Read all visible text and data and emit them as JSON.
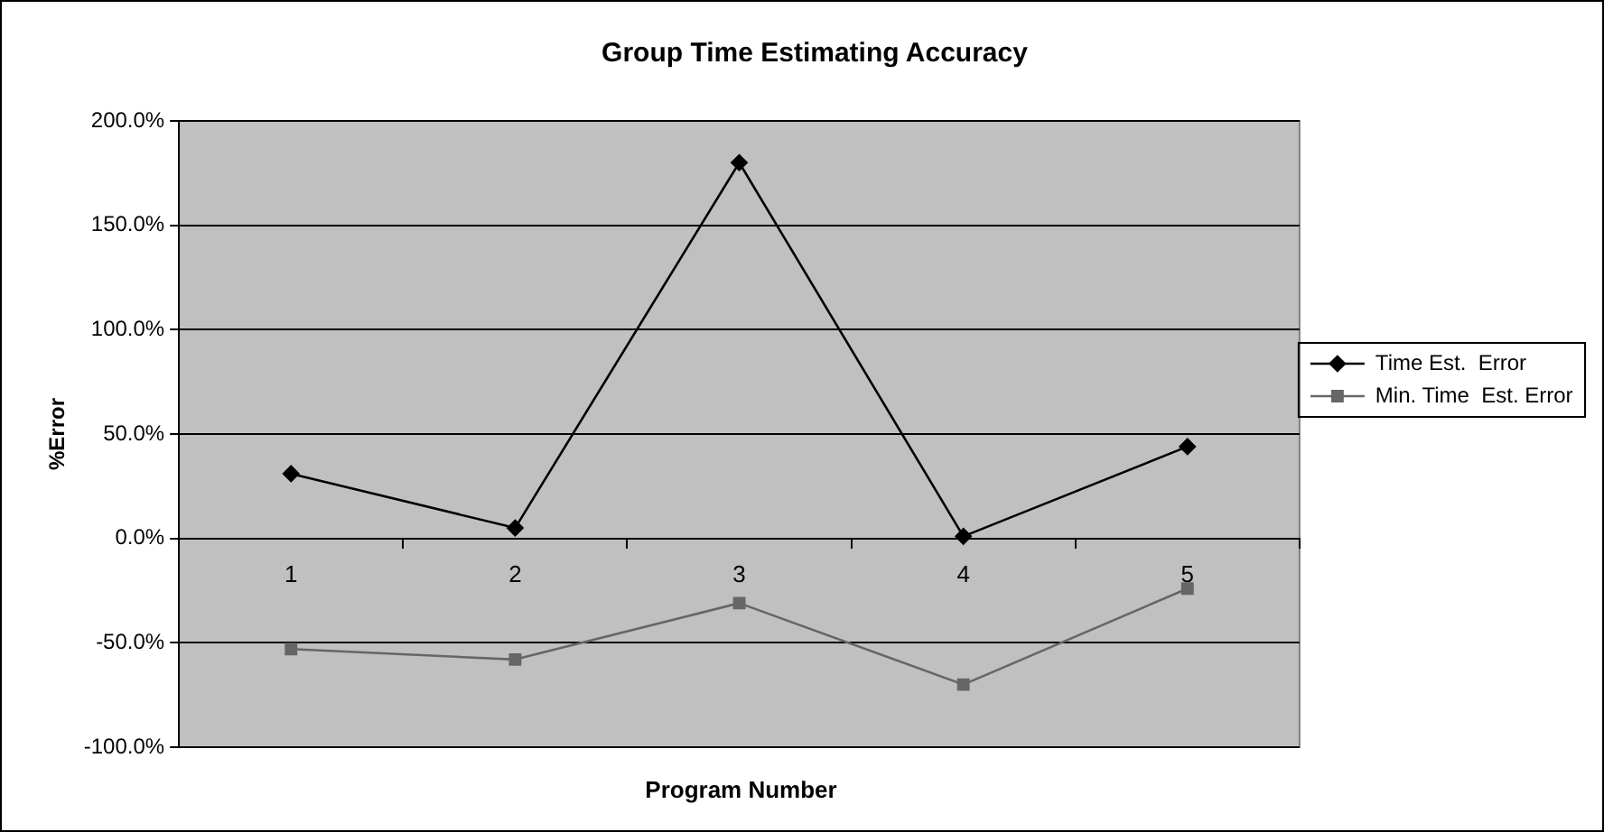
{
  "chart_data": {
    "type": "line",
    "title": "Group Time Estimating Accuracy",
    "xlabel": "Program Number",
    "ylabel": "%Error",
    "categories": [
      "1",
      "2",
      "3",
      "4",
      "5"
    ],
    "series": [
      {
        "name": "Time Est.  Error",
        "color": "#000000",
        "marker": "diamond",
        "values": [
          31,
          5,
          180,
          1,
          44
        ]
      },
      {
        "name": "Min. Time  Est. Error",
        "color": "#666666",
        "marker": "square",
        "values": [
          -53,
          -58,
          -31,
          -70,
          -24
        ]
      }
    ],
    "ylim": [
      -100,
      200
    ],
    "yticks": [
      {
        "value": -100,
        "label": "-100.0%"
      },
      {
        "value": -50,
        "label": "-50.0%"
      },
      {
        "value": 0,
        "label": "0.0%"
      },
      {
        "value": 50,
        "label": "50.0%"
      },
      {
        "value": 100,
        "label": "100.0%"
      },
      {
        "value": 150,
        "label": "150.0%"
      },
      {
        "value": 200,
        "label": "200.0%"
      }
    ],
    "grid": "y",
    "legend": "right"
  }
}
